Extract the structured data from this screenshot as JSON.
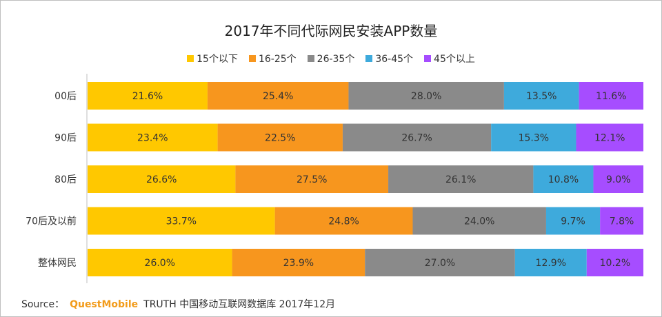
{
  "chart_data": {
    "type": "bar",
    "orientation": "horizontal",
    "stacked": true,
    "title": "2017年不同代际网民安装APP数量",
    "categories": [
      "00后",
      "90后",
      "80后",
      "70后及以前",
      "整体网民"
    ],
    "series": [
      {
        "name": "15个以下",
        "color": "#ffc800",
        "values": [
          21.6,
          23.4,
          26.6,
          33.7,
          26.0
        ],
        "labels": [
          "21.6%",
          "23.4%",
          "26.6%",
          "33.7%",
          "26.0%"
        ]
      },
      {
        "name": "16-25个",
        "color": "#f7961e",
        "values": [
          25.4,
          22.5,
          27.5,
          24.8,
          23.9
        ],
        "labels": [
          "25.4%",
          "22.5%",
          "27.5%",
          "24.8%",
          "23.9%"
        ]
      },
      {
        "name": "26-35个",
        "color": "#8a8a8a",
        "values": [
          28.0,
          26.7,
          26.1,
          24.0,
          27.0
        ],
        "labels": [
          "28.0%",
          "26.7%",
          "26.1%",
          "24.0%",
          "27.0%"
        ]
      },
      {
        "name": "36-45个",
        "color": "#3eaadc",
        "values": [
          13.5,
          15.3,
          10.8,
          9.7,
          12.9
        ],
        "labels": [
          "13.5%",
          "15.3%",
          "10.8%",
          "9.7%",
          "12.9%"
        ]
      },
      {
        "name": "45个以上",
        "color": "#a64dff",
        "values": [
          11.6,
          12.1,
          9.0,
          7.8,
          10.2
        ],
        "labels": [
          "11.6%",
          "12.1%",
          "9.0%",
          "7.8%",
          "10.2%"
        ]
      }
    ],
    "xlim": [
      0,
      100
    ],
    "legend_position": "top",
    "grid": false
  },
  "source": {
    "prefix": "Source：",
    "brand": "QuestMobile",
    "text": "TRUTH 中国移动互联网数据库 2017年12月"
  }
}
